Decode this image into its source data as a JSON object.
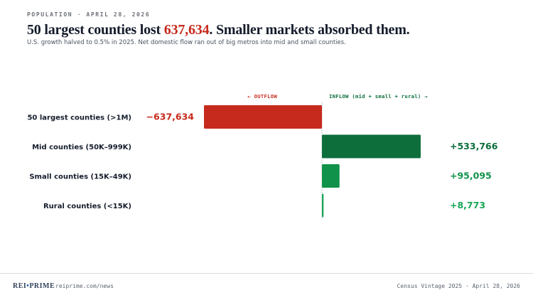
{
  "header": {
    "kicker": "POPULATION · APRIL 28, 2026",
    "headline_pre": "50 largest counties lost ",
    "headline_accent": "637,634",
    "headline_post": ". Smaller markets absorbed them.",
    "subtitle": "U.S. growth halved to 0.5% in 2025. Net domestic flow ran out of big metros into mid and small counties."
  },
  "chart_data": {
    "type": "bar",
    "orientation": "horizontal",
    "direction_labels": {
      "outflow": "← OUTFLOW",
      "inflow": "INFLOW (mid + small + rural) →"
    },
    "categories": [
      "50 largest counties (>1M)",
      "Mid counties (50K–999K)",
      "Small counties (15K–49K)",
      "Rural counties (<15K)"
    ],
    "values": [
      -637634,
      533766,
      95095,
      8773
    ],
    "value_labels": [
      "−637,634",
      "+533,766",
      "+95,095",
      "+8,773"
    ],
    "colors": [
      "#c62a1d",
      "#0d6e3c",
      "#10924a",
      "#17a556"
    ],
    "label_colors": [
      "#c62a1d",
      "#0d6e3c",
      "#10924a",
      "#17a556"
    ],
    "xlim": [
      -700000,
      700000
    ]
  },
  "footer": {
    "brand_left": "REI",
    "brand_dot": "•",
    "brand_right": "PRIME",
    "site": "reiprime.com/news",
    "source": "Census Vintage 2025 · April 28, 2026"
  }
}
